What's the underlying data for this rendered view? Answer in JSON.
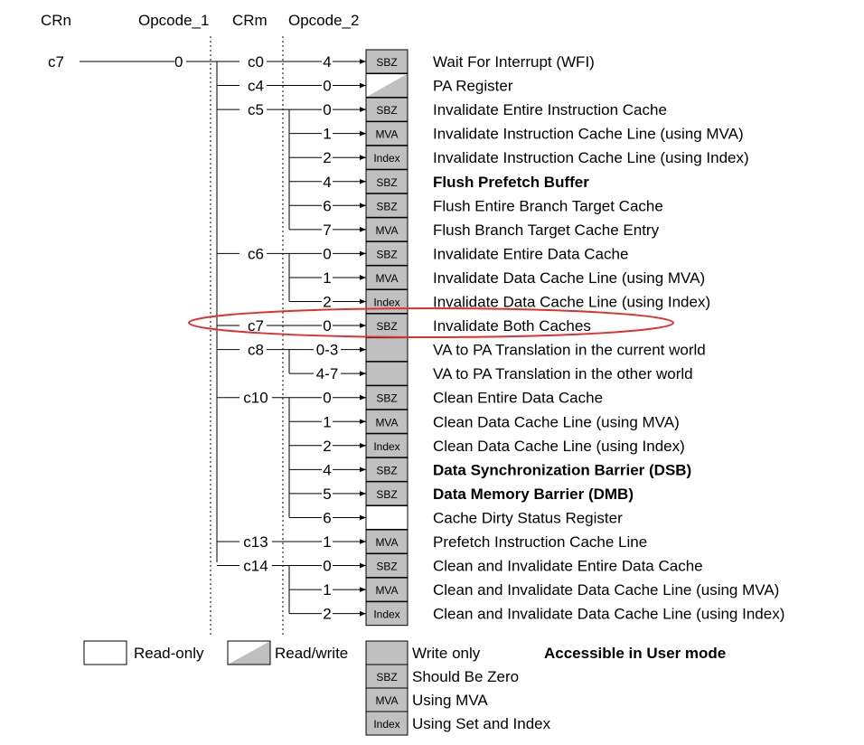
{
  "headers": {
    "crn": "CRn",
    "op1": "Opcode_1",
    "crm": "CRm",
    "op2": "Opcode_2"
  },
  "crn_value": "c7",
  "op1_value": "0",
  "groups": [
    {
      "crm": "c0",
      "entries": [
        {
          "op2": "4",
          "type": "SBZ",
          "desc": "Wait For Interrupt (WFI)",
          "bold": false
        }
      ]
    },
    {
      "crm": "c4",
      "entries": [
        {
          "op2": "0",
          "type": "RW",
          "desc": "PA Register",
          "bold": false
        }
      ]
    },
    {
      "crm": "c5",
      "entries": [
        {
          "op2": "0",
          "type": "SBZ",
          "desc": "Invalidate Entire Instruction Cache",
          "bold": false
        },
        {
          "op2": "1",
          "type": "MVA",
          "desc": "Invalidate Instruction Cache Line (using MVA)",
          "bold": false
        },
        {
          "op2": "2",
          "type": "Index",
          "desc": "Invalidate Instruction Cache Line (using Index)",
          "bold": false
        },
        {
          "op2": "4",
          "type": "SBZ",
          "desc": "Flush Prefetch Buffer",
          "bold": true
        },
        {
          "op2": "6",
          "type": "SBZ",
          "desc": "Flush Entire Branch Target Cache",
          "bold": false
        },
        {
          "op2": "7",
          "type": "MVA",
          "desc": "Flush Branch Target Cache Entry",
          "bold": false
        }
      ]
    },
    {
      "crm": "c6",
      "entries": [
        {
          "op2": "0",
          "type": "SBZ",
          "desc": "Invalidate Entire Data Cache",
          "bold": false
        },
        {
          "op2": "1",
          "type": "MVA",
          "desc": "Invalidate Data Cache Line (using MVA)",
          "bold": false
        },
        {
          "op2": "2",
          "type": "Index",
          "desc": "Invalidate Data Cache Line (using Index)",
          "bold": false
        }
      ]
    },
    {
      "crm": "c7",
      "highlight": true,
      "entries": [
        {
          "op2": "0",
          "type": "SBZ",
          "desc": "Invalidate Both Caches",
          "bold": false
        }
      ]
    },
    {
      "crm": "c8",
      "entries": [
        {
          "op2": "0-3",
          "type": "WO",
          "desc": "VA to PA Translation in the current world",
          "bold": false
        },
        {
          "op2": "4-7",
          "type": "WO",
          "desc": "VA to PA Translation in the other world",
          "bold": false
        }
      ]
    },
    {
      "crm": "c10",
      "entries": [
        {
          "op2": "0",
          "type": "SBZ",
          "desc": "Clean Entire Data Cache",
          "bold": false
        },
        {
          "op2": "1",
          "type": "MVA",
          "desc": "Clean Data Cache Line (using MVA)",
          "bold": false
        },
        {
          "op2": "2",
          "type": "Index",
          "desc": "Clean Data Cache Line (using Index)",
          "bold": false
        },
        {
          "op2": "4",
          "type": "SBZ",
          "desc": "Data Synchronization Barrier (DSB)",
          "bold": true
        },
        {
          "op2": "5",
          "type": "SBZ",
          "desc": "Data Memory Barrier (DMB)",
          "bold": true
        },
        {
          "op2": "6",
          "type": "RO",
          "desc": "Cache Dirty Status Register",
          "bold": false
        }
      ]
    },
    {
      "crm": "c13",
      "entries": [
        {
          "op2": "1",
          "type": "MVA",
          "desc": "Prefetch Instruction Cache Line",
          "bold": false
        }
      ]
    },
    {
      "crm": "c14",
      "entries": [
        {
          "op2": "0",
          "type": "SBZ",
          "desc": "Clean and Invalidate Entire Data Cache",
          "bold": false
        },
        {
          "op2": "1",
          "type": "MVA",
          "desc": "Clean and Invalidate Data Cache Line (using MVA)",
          "bold": false
        },
        {
          "op2": "2",
          "type": "Index",
          "desc": "Clean and Invalidate Data Cache Line (using Index)",
          "bold": false
        }
      ]
    }
  ],
  "legend": {
    "read_only": "Read-only",
    "read_write": "Read/write",
    "write_only": "Write only",
    "user_mode": "Accessible in User mode",
    "sbz_box": "SBZ",
    "sbz_text": "Should Be Zero",
    "mva_box": "MVA",
    "mva_text": "Using MVA",
    "index_box": "Index",
    "index_text": "Using Set and Index"
  },
  "colors": {
    "box_fill": "#c0c0c0",
    "highlight": "#e03030"
  }
}
